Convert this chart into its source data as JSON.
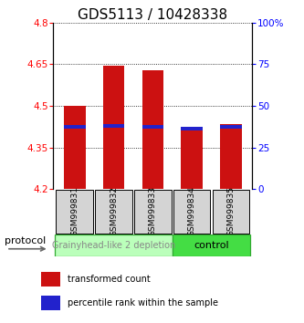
{
  "title": "GDS5113 / 10428338",
  "samples": [
    "GSM999831",
    "GSM999832",
    "GSM999833",
    "GSM999834",
    "GSM999835"
  ],
  "red_values": [
    4.5,
    4.645,
    4.628,
    4.423,
    4.435
  ],
  "blue_values": [
    4.425,
    4.428,
    4.425,
    4.418,
    4.425
  ],
  "bar_bottom": 4.2,
  "ylim": [
    4.2,
    4.8
  ],
  "yticks_left": [
    4.2,
    4.35,
    4.5,
    4.65,
    4.8
  ],
  "yticks_right": [
    0,
    25,
    50,
    75,
    100
  ],
  "ytick_labels_left": [
    "4.2",
    "4.35",
    "4.5",
    "4.65",
    "4.8"
  ],
  "ytick_labels_right": [
    "0",
    "25",
    "50",
    "75",
    "100%"
  ],
  "groups": [
    {
      "label": "Grainyhead-like 2 depletion",
      "indices": [
        0,
        1,
        2
      ],
      "color": "#bbffbb",
      "border_color": "#33aa33",
      "text_color": "#888888"
    },
    {
      "label": "control",
      "indices": [
        3,
        4
      ],
      "color": "#44dd44",
      "border_color": "#33aa33",
      "text_color": "#000000"
    }
  ],
  "protocol_label": "protocol",
  "legend_red": "transformed count",
  "legend_blue": "percentile rank within the sample",
  "bar_color_red": "#cc1111",
  "bar_color_blue": "#2222cc",
  "bar_width": 0.55,
  "title_fontsize": 11,
  "tick_fontsize": 7.5,
  "sample_fontsize": 6.5,
  "group_fontsize": 7,
  "legend_fontsize": 7,
  "proto_fontsize": 8
}
